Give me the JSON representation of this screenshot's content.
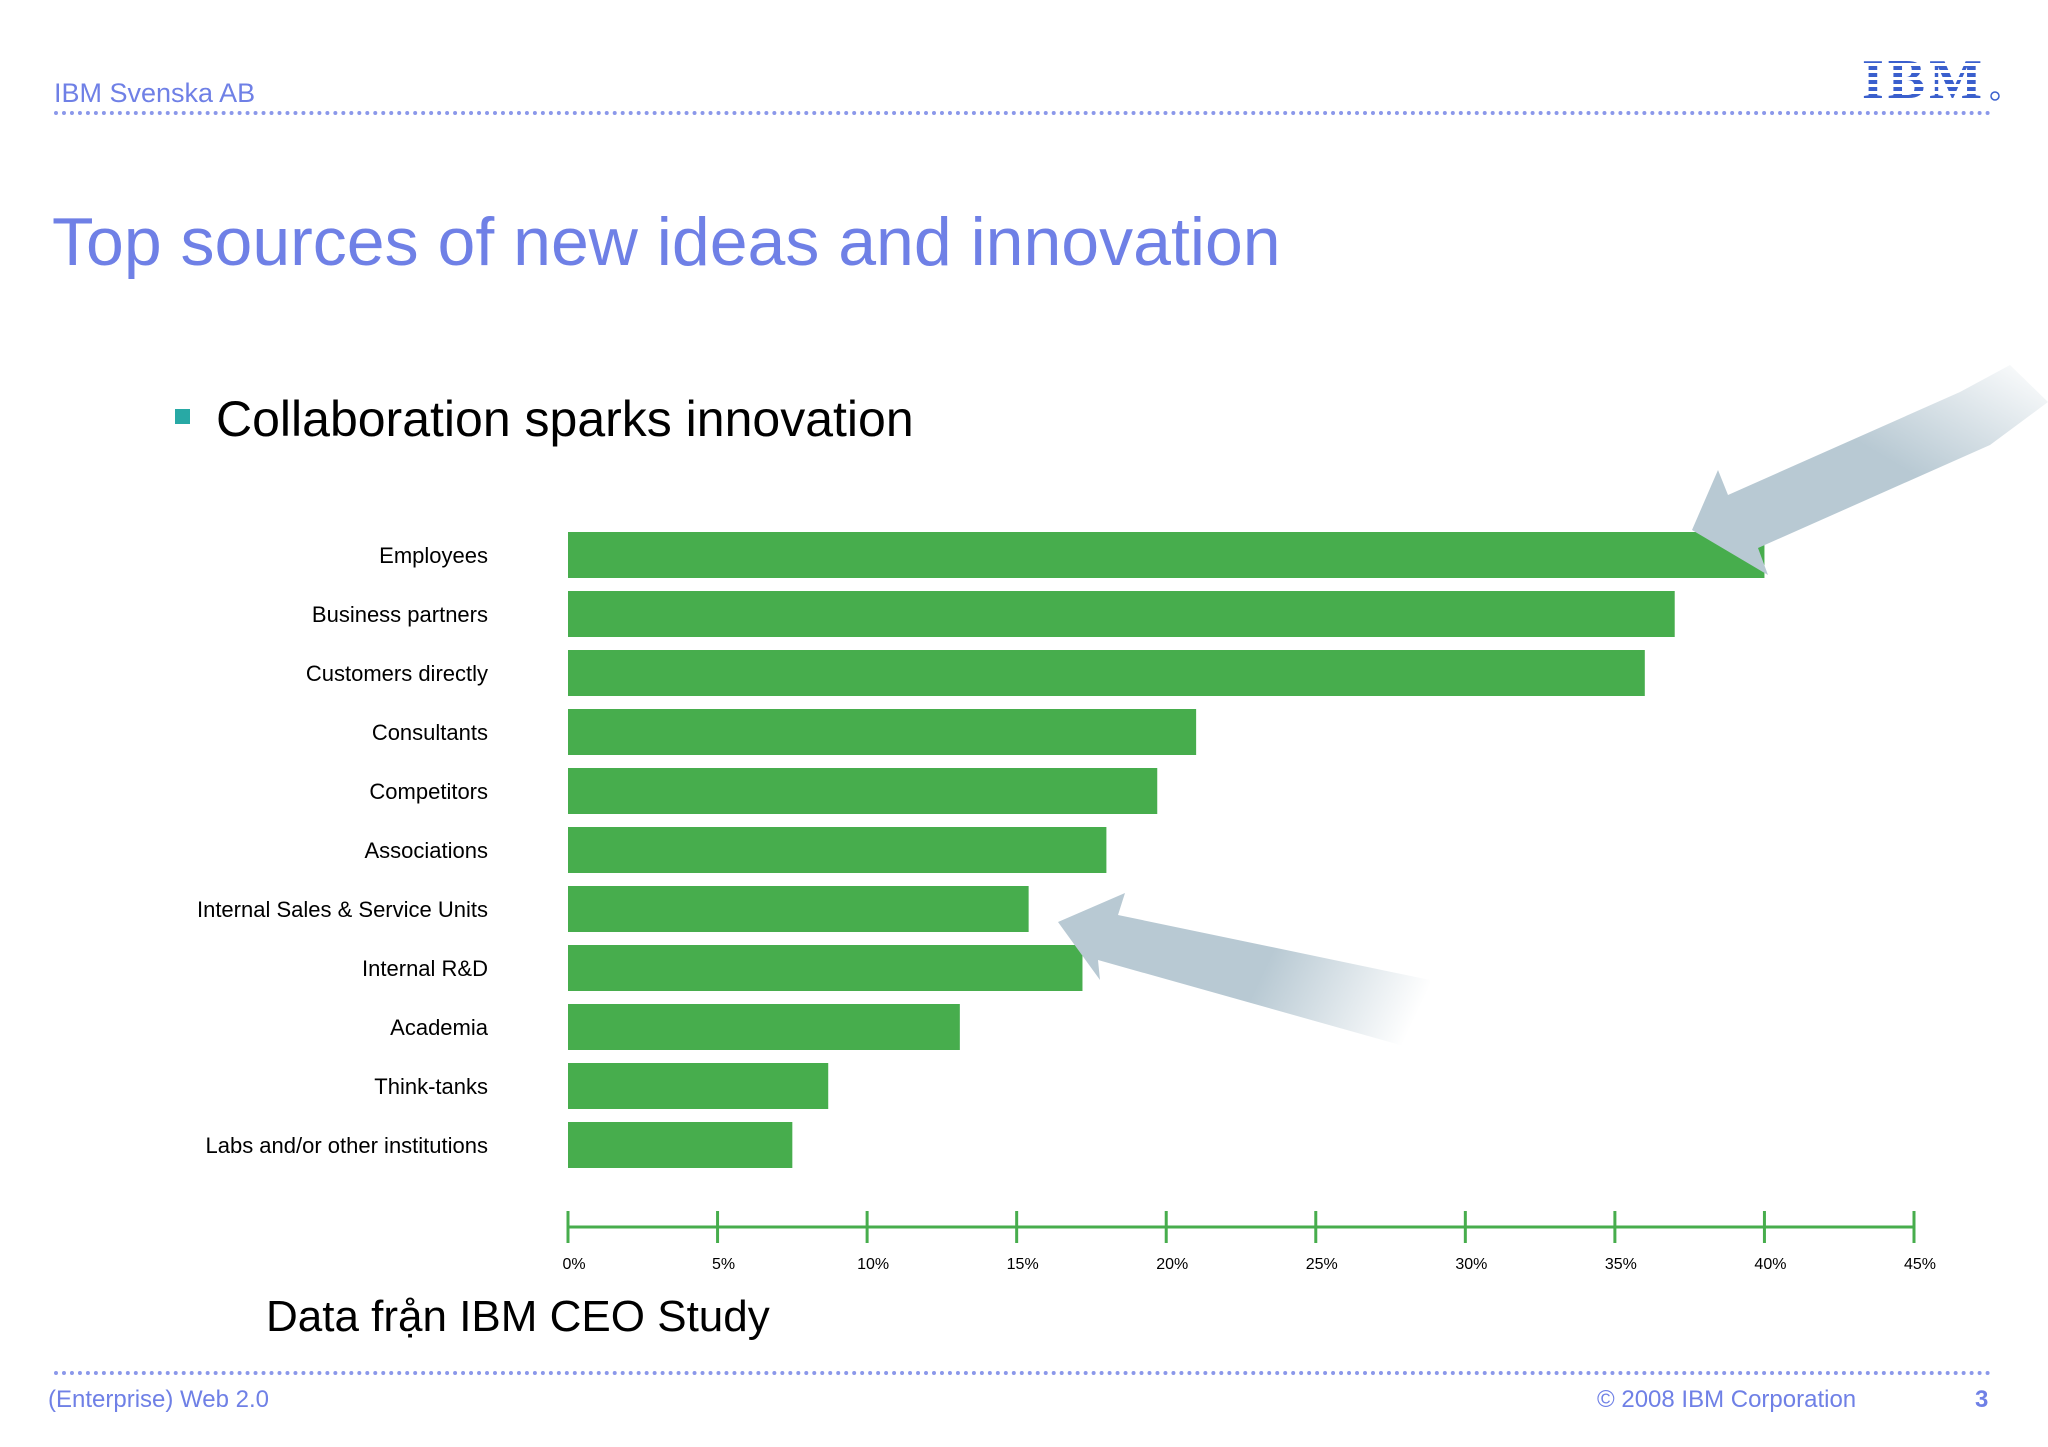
{
  "header": {
    "company": "IBM Svenska AB",
    "logo_text": "IBM"
  },
  "slide": {
    "title": "Top sources of new ideas and innovation",
    "bullet": "Collaboration sparks innovation",
    "source_note": "Data frạ̊n IBM CEO Study"
  },
  "footer": {
    "left": "(Enterprise) Web 2.0",
    "right": "© 2008 IBM Corporation",
    "page": "3"
  },
  "colors": {
    "bar": "#47ad4d",
    "axis": "#47ad4d",
    "accent": "#6f80e6",
    "arrow": "#b8c9d3"
  },
  "chart_data": {
    "type": "bar",
    "orientation": "horizontal",
    "categories": [
      "Employees",
      "Business partners",
      "Customers directly",
      "Consultants",
      "Competitors",
      "Associations",
      "Internal Sales & Service Units",
      "Internal R&D",
      "Academia",
      "Think-tanks",
      "Labs and/or other institutions"
    ],
    "values": [
      40,
      37,
      36,
      21,
      19.7,
      18,
      15.4,
      17.2,
      13.1,
      8.7,
      7.5
    ],
    "xlim": [
      0,
      45
    ],
    "xticks": [
      "0%",
      "5%",
      "10%",
      "15%",
      "20%",
      "25%",
      "30%",
      "35%",
      "40%",
      "45%"
    ],
    "xlabel": "",
    "ylabel": "",
    "annotations": [
      "arrow pointing to Employees bar",
      "arrow pointing to Internal R&D bar"
    ]
  }
}
